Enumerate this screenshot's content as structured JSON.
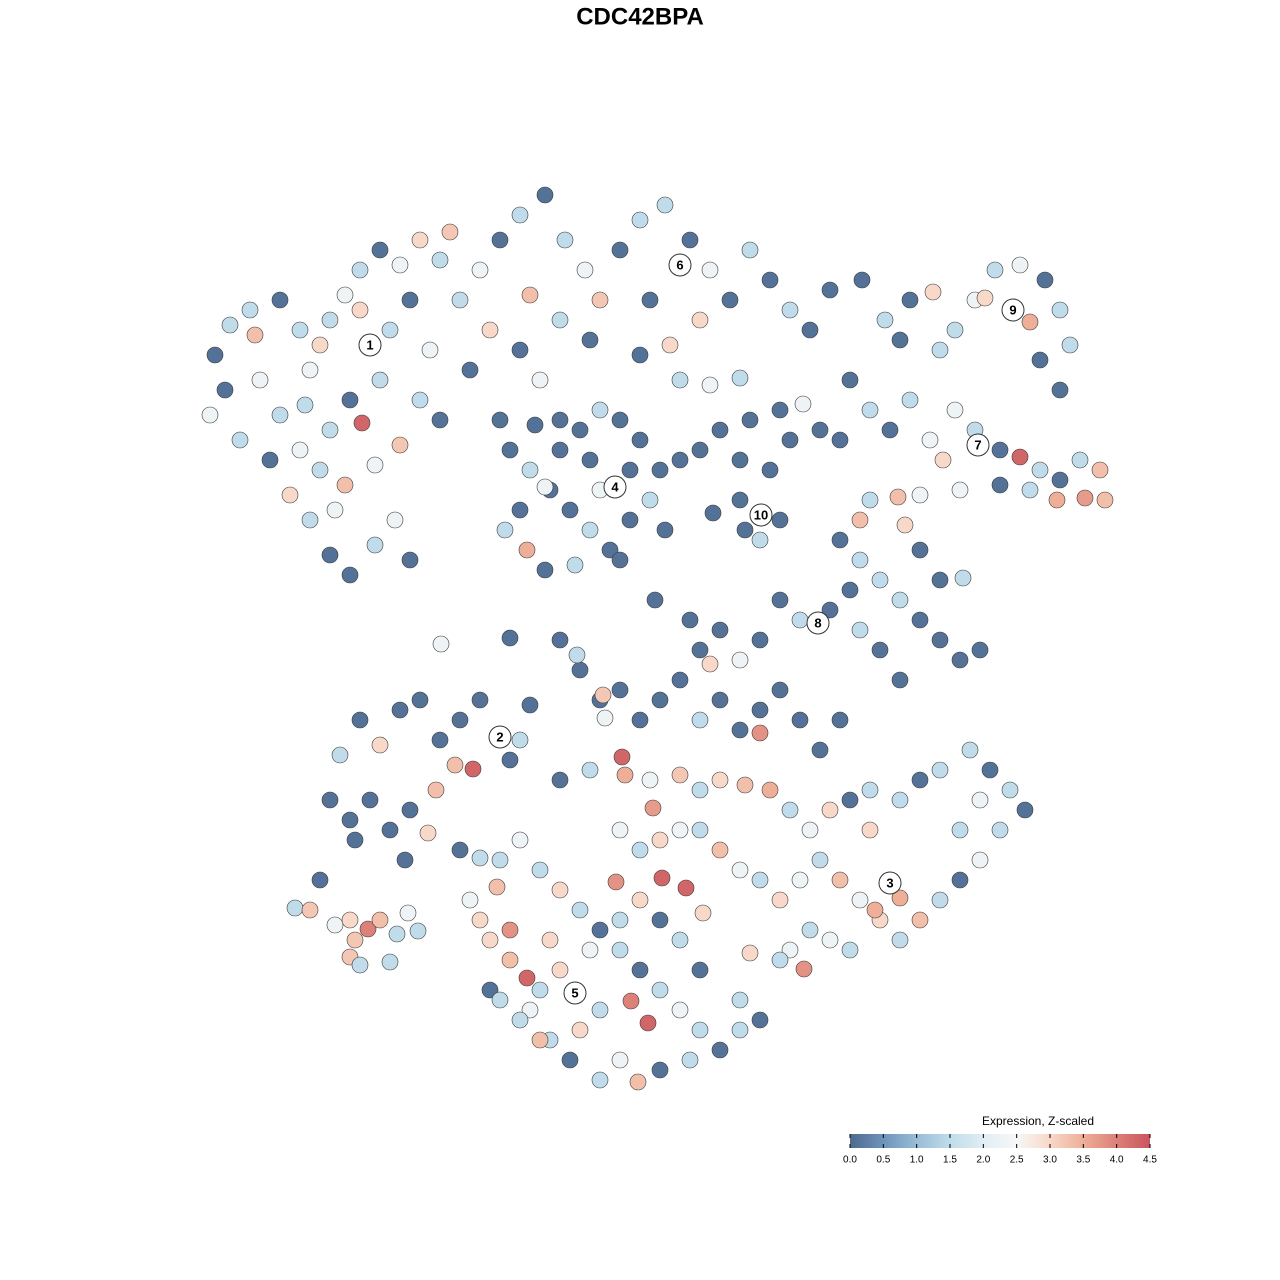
{
  "chart_data": {
    "type": "scatter",
    "title": "CDC42BPA",
    "xlim": [
      200,
      1130
    ],
    "ylim": [
      0,
      905
    ],
    "x": [
      215,
      230,
      250,
      225,
      210,
      240,
      260,
      280,
      300,
      320,
      310,
      330,
      345,
      360,
      380,
      400,
      420,
      440,
      360,
      390,
      410,
      430,
      380,
      350,
      362,
      330,
      300,
      290,
      320,
      345,
      375,
      400,
      420,
      440,
      310,
      330,
      350,
      375,
      395,
      410,
      335,
      270,
      305,
      255,
      280,
      460,
      480,
      500,
      520,
      545,
      565,
      585,
      600,
      620,
      640,
      665,
      690,
      710,
      730,
      750,
      770,
      790,
      810,
      830,
      700,
      670,
      650,
      560,
      520,
      490,
      470,
      540,
      500,
      590,
      680,
      710,
      740,
      640,
      530,
      450,
      510,
      530,
      550,
      570,
      590,
      610,
      630,
      650,
      660,
      640,
      620,
      600,
      580,
      560,
      545,
      520,
      505,
      527,
      545,
      575,
      600,
      630,
      590,
      560,
      535,
      665,
      620,
      700,
      720,
      750,
      780,
      803,
      740,
      770,
      790,
      740,
      760,
      780,
      745,
      713,
      680,
      820,
      862,
      885,
      910,
      933,
      955,
      975,
      995,
      1020,
      1045,
      1060,
      1070,
      1030,
      985,
      1040,
      1060,
      940,
      900,
      850,
      870,
      890,
      910,
      930,
      955,
      975,
      1000,
      1020,
      1040,
      1060,
      1080,
      1100,
      1105,
      1085,
      1057,
      1030,
      1000,
      943,
      960,
      920,
      898,
      870,
      860,
      905,
      840,
      840,
      860,
      850,
      880,
      900,
      920,
      940,
      960,
      980,
      900,
      880,
      860,
      830,
      800,
      780,
      760,
      740,
      720,
      700,
      710,
      940,
      963,
      920,
      560,
      580,
      600,
      620,
      640,
      660,
      680,
      700,
      720,
      740,
      760,
      780,
      800,
      820,
      840,
      603,
      760,
      690,
      655,
      577,
      510,
      441,
      605,
      530,
      340,
      360,
      380,
      400,
      420,
      440,
      460,
      480,
      510,
      473,
      455,
      330,
      350,
      370,
      390,
      410,
      436,
      428,
      405,
      460,
      480,
      355,
      520,
      560,
      590,
      622,
      625,
      650,
      680,
      700,
      720,
      745,
      770,
      790,
      810,
      830,
      850,
      870,
      900,
      920,
      940,
      970,
      990,
      1010,
      1025,
      1000,
      980,
      960,
      940,
      920,
      900,
      880,
      860,
      840,
      820,
      800,
      780,
      760,
      740,
      720,
      700,
      680,
      660,
      640,
      620,
      653,
      662,
      686,
      616,
      900,
      875,
      810,
      790,
      804,
      780,
      750,
      830,
      850,
      870,
      960,
      980,
      500,
      520,
      540,
      560,
      580,
      600,
      620,
      640,
      660,
      680,
      700,
      720,
      740,
      760,
      740,
      700,
      680,
      660,
      640,
      620,
      590,
      560,
      540,
      527,
      510,
      490,
      480,
      470,
      497,
      510,
      550,
      530,
      550,
      570,
      600,
      620,
      638,
      660,
      690,
      631,
      648,
      600,
      580,
      540,
      520,
      490,
      500,
      703,
      295,
      310,
      320,
      335,
      350,
      368,
      380,
      355,
      350,
      360,
      390,
      397,
      408,
      418
    ],
    "y": [
      735,
      765,
      780,
      700,
      675,
      650,
      710,
      790,
      760,
      745,
      720,
      770,
      795,
      820,
      840,
      825,
      850,
      830,
      780,
      760,
      790,
      740,
      710,
      690,
      667,
      660,
      640,
      595,
      620,
      605,
      625,
      645,
      690,
      670,
      570,
      535,
      515,
      545,
      570,
      530,
      580,
      630,
      685,
      755,
      675,
      790,
      820,
      850,
      875,
      895,
      850,
      820,
      790,
      840,
      870,
      885,
      850,
      820,
      790,
      840,
      810,
      780,
      760,
      800,
      770,
      745,
      790,
      770,
      740,
      760,
      720,
      710,
      670,
      750,
      710,
      705,
      712,
      735,
      795,
      858,
      640,
      620,
      600,
      580,
      560,
      540,
      570,
      590,
      620,
      650,
      670,
      680,
      660,
      640,
      603,
      580,
      560,
      540,
      520,
      525,
      600,
      620,
      630,
      670,
      665,
      560,
      530,
      640,
      660,
      670,
      680,
      686,
      630,
      620,
      650,
      590,
      550,
      570,
      560,
      577,
      630,
      660,
      810,
      770,
      790,
      798,
      760,
      790,
      820,
      825,
      810,
      780,
      745,
      768,
      792,
      730,
      700,
      740,
      750,
      710,
      680,
      660,
      690,
      650,
      680,
      660,
      640,
      633,
      620,
      610,
      630,
      620,
      590,
      592,
      590,
      600,
      605,
      630,
      600,
      595,
      593,
      590,
      570,
      565,
      650,
      550,
      530,
      500,
      510,
      490,
      470,
      450,
      430,
      440,
      410,
      440,
      460,
      480,
      470,
      490,
      450,
      430,
      460,
      440,
      426,
      510,
      512,
      540,
      450,
      420,
      390,
      400,
      370,
      390,
      410,
      370,
      390,
      360,
      380,
      400,
      370,
      340,
      370,
      395,
      357,
      470,
      490,
      435,
      452,
      446,
      372,
      385,
      335,
      370,
      345,
      380,
      390,
      350,
      370,
      390,
      330,
      321,
      325,
      290,
      270,
      290,
      260,
      280,
      300,
      257,
      230,
      240,
      232,
      250,
      350,
      310,
      320,
      333,
      315,
      310,
      315,
      300,
      310,
      305,
      300,
      280,
      260,
      280,
      290,
      300,
      290,
      310,
      320,
      340,
      320,
      300,
      280,
      260,
      230,
      210,
      190,
      170,
      150,
      170,
      190,
      210,
      230,
      210,
      190,
      210,
      220,
      240,
      260,
      260,
      250,
      240,
      260,
      282,
      212,
      202,
      208,
      192,
      180,
      160,
      140,
      121,
      130,
      137,
      150,
      140,
      260,
      260,
      290,
      230,
      250,
      220,
      200,
      180,
      160,
      140,
      120,
      100,
      80,
      60,
      40,
      60,
      70,
      90,
      120,
      150,
      170,
      190,
      170,
      140,
      120,
      100,
      112,
      130,
      150,
      170,
      190,
      203,
      160,
      150,
      80,
      50,
      30,
      10,
      30,
      8,
      20,
      30,
      89,
      67,
      80,
      60,
      50,
      70,
      100,
      90,
      177,
      182,
      180,
      210,
      165,
      170,
      161,
      170,
      150,
      133,
      125,
      128,
      156,
      177,
      159
    ],
    "values": [
      0.1,
      1.5,
      1.5,
      0.1,
      2.3,
      1.5,
      2.3,
      0.1,
      1.5,
      3.0,
      2.3,
      1.5,
      2.3,
      1.5,
      0.1,
      2.3,
      3.0,
      1.5,
      3.0,
      1.5,
      0.1,
      2.3,
      1.5,
      0.1,
      4.3,
      1.5,
      2.3,
      3.0,
      1.5,
      3.3,
      2.3,
      3.2,
      1.5,
      0.1,
      1.5,
      0.1,
      0.1,
      1.5,
      2.3,
      0.1,
      2.3,
      0.1,
      1.5,
      3.3,
      1.5,
      1.5,
      2.3,
      0.1,
      1.5,
      0.1,
      1.5,
      2.3,
      3.2,
      0.1,
      1.5,
      1.5,
      0.1,
      2.3,
      0.1,
      1.5,
      0.1,
      1.5,
      0.1,
      0.1,
      3.0,
      3.0,
      0.1,
      1.5,
      0.1,
      3.0,
      0.1,
      2.3,
      0.1,
      0.1,
      1.5,
      2.3,
      1.5,
      0.1,
      3.3,
      3.2,
      0.1,
      1.5,
      0.1,
      0.1,
      1.5,
      0.1,
      0.1,
      1.5,
      0.1,
      0.1,
      0.1,
      1.5,
      0.1,
      0.1,
      2.3,
      0.1,
      1.5,
      3.5,
      0.1,
      1.5,
      2.3,
      0.1,
      0.1,
      0.1,
      0.1,
      0.1,
      0.1,
      0.1,
      0.1,
      0.1,
      0.1,
      2.3,
      0.1,
      0.1,
      0.1,
      0.1,
      1.5,
      0.1,
      0.1,
      0.1,
      0.1,
      0.1,
      0.1,
      1.5,
      0.1,
      3.0,
      1.5,
      2.3,
      1.5,
      2.3,
      0.1,
      1.5,
      1.5,
      3.5,
      3.0,
      0.1,
      0.1,
      1.5,
      0.1,
      0.1,
      1.5,
      0.1,
      1.5,
      2.3,
      2.3,
      1.5,
      0.1,
      4.3,
      1.5,
      0.1,
      1.5,
      3.3,
      3.3,
      3.7,
      3.5,
      1.5,
      0.1,
      3.0,
      2.3,
      2.3,
      3.3,
      1.5,
      3.3,
      3.0,
      0.1,
      0.1,
      1.5,
      0.1,
      1.5,
      1.5,
      0.1,
      0.1,
      0.1,
      0.1,
      0.1,
      0.1,
      1.5,
      0.1,
      1.5,
      0.1,
      0.1,
      2.3,
      0.1,
      0.1,
      3.0,
      0.1,
      1.5,
      0.1,
      0.1,
      0.1,
      0.1,
      0.1,
      0.1,
      0.1,
      0.1,
      1.5,
      0.1,
      0.1,
      0.1,
      0.1,
      0.1,
      0.1,
      0.1,
      3.2,
      3.8,
      0.1,
      0.1,
      1.5,
      0.1,
      2.3,
      2.3,
      0.1,
      1.5,
      0.1,
      3.0,
      0.1,
      0.1,
      0.1,
      0.1,
      0.1,
      0.1,
      4.3,
      3.3,
      0.1,
      0.1,
      0.1,
      0.1,
      0.1,
      3.3,
      3.0,
      0.1,
      0.1,
      1.5,
      0.1,
      1.5,
      0.1,
      1.5,
      4.3,
      3.5,
      2.3,
      3.2,
      1.5,
      3.0,
      3.3,
      3.5,
      1.5,
      2.3,
      3.0,
      0.1,
      1.5,
      1.5,
      0.1,
      1.5,
      1.5,
      0.1,
      1.5,
      0.1,
      1.5,
      2.3,
      0.1,
      1.5,
      3.3,
      1.5,
      3.0,
      2.3,
      3.3,
      1.5,
      2.3,
      3.0,
      1.5,
      2.3,
      3.3,
      1.5,
      2.3,
      3.0,
      1.5,
      2.3,
      3.7,
      4.3,
      4.3,
      3.8,
      3.5,
      3.5,
      1.5,
      2.3,
      3.8,
      1.5,
      3.0,
      2.3,
      1.5,
      3.0,
      1.5,
      2.3,
      1.5,
      2.3,
      1.5,
      3.0,
      1.5,
      0.1,
      1.5,
      0.1,
      1.5,
      2.3,
      1.5,
      0.1,
      1.5,
      0.1,
      1.5,
      0.1,
      1.5,
      0.1,
      3.0,
      1.5,
      2.3,
      3.0,
      1.5,
      4.3,
      3.3,
      3.0,
      3.0,
      2.3,
      3.3,
      3.8,
      3.0,
      2.3,
      1.5,
      0.1,
      1.5,
      2.3,
      3.3,
      0.1,
      1.5,
      4.0,
      4.3,
      1.5,
      3.0,
      3.3,
      1.5,
      0.1,
      1.5,
      3.0,
      1.5,
      3.2,
      0.1,
      2.3,
      3.0,
      4.0,
      3.3,
      3.2,
      3.2,
      1.5,
      1.5,
      1.5,
      2.3,
      1.5
    ],
    "clusters": [
      {
        "label": "1",
        "x": 370,
        "y": 745
      },
      {
        "label": "2",
        "x": 500,
        "y": 353
      },
      {
        "label": "3",
        "x": 890,
        "y": 207
      },
      {
        "label": "4",
        "x": 615,
        "y": 603
      },
      {
        "label": "5",
        "x": 575,
        "y": 97
      },
      {
        "label": "6",
        "x": 680,
        "y": 825
      },
      {
        "label": "7",
        "x": 978,
        "y": 645
      },
      {
        "label": "8",
        "x": 818,
        "y": 467
      },
      {
        "label": "9",
        "x": 1013,
        "y": 780
      },
      {
        "label": "10",
        "x": 761,
        "y": 575
      }
    ],
    "colorbar": {
      "title": "Expression, Z-scaled",
      "lim": [
        0,
        4.5
      ],
      "ticks": [
        {
          "value": 0,
          "label": "0.0"
        },
        0.5,
        {
          "value": 1,
          "label": "1.0"
        },
        1.5,
        {
          "value": 2,
          "label": "2.0"
        },
        2.5,
        {
          "value": 3,
          "label": "3.0"
        },
        3.5,
        {
          "value": 4,
          "label": "4.0"
        },
        4.5
      ],
      "colors": [
        "#4e6a8e",
        "#6e93ba",
        "#98bdd7",
        "#c0dcea",
        "#e0eef5",
        "#f7f7f7",
        "#f8d8c8",
        "#eeae98",
        "#dd8078",
        "#c9545f"
      ]
    }
  }
}
